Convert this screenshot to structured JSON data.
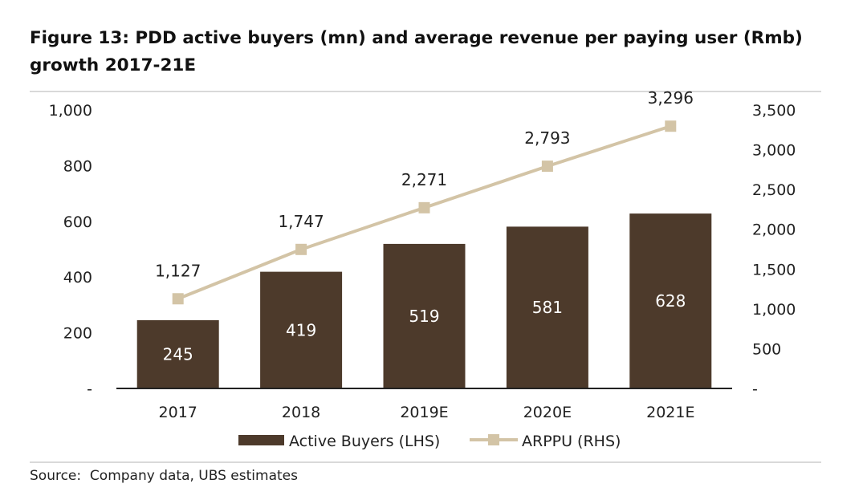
{
  "header": {
    "title": "Figure 13: PDD active buyers (mn) and average revenue per paying user (Rmb) growth 2017-21E"
  },
  "footer": {
    "source": "Source:  Company data, UBS estimates"
  },
  "colors": {
    "bar": "#4d3a2b",
    "line": "#d3c4a6",
    "axis": "#222222"
  },
  "chart_data": {
    "type": "bar+line",
    "categories": [
      "2017",
      "2018",
      "2019E",
      "2020E",
      "2021E"
    ],
    "series": [
      {
        "name": "Active Buyers (LHS)",
        "type": "bar",
        "axis": "left",
        "values": [
          245,
          419,
          519,
          581,
          628
        ],
        "labels": [
          "245",
          "419",
          "519",
          "581",
          "628"
        ]
      },
      {
        "name": "ARPPU (RHS)",
        "type": "line",
        "axis": "right",
        "values": [
          1127,
          1747,
          2271,
          2793,
          3296
        ],
        "labels": [
          "1,127",
          "1,747",
          "2,271",
          "2,793",
          "3,296"
        ]
      }
    ],
    "y_left": {
      "min": 0,
      "max": 1000,
      "step": 200,
      "tick_labels": [
        "-",
        "200",
        "400",
        "600",
        "800",
        "1,000"
      ]
    },
    "y_right": {
      "min": 0,
      "max": 3500,
      "step": 500,
      "tick_labels": [
        "-",
        "500",
        "1,000",
        "1,500",
        "2,000",
        "2,500",
        "3,000",
        "3,500"
      ]
    },
    "legend": {
      "position": "bottom",
      "items": [
        "Active Buyers (LHS)",
        "ARPPU (RHS)"
      ]
    },
    "grid": false
  }
}
